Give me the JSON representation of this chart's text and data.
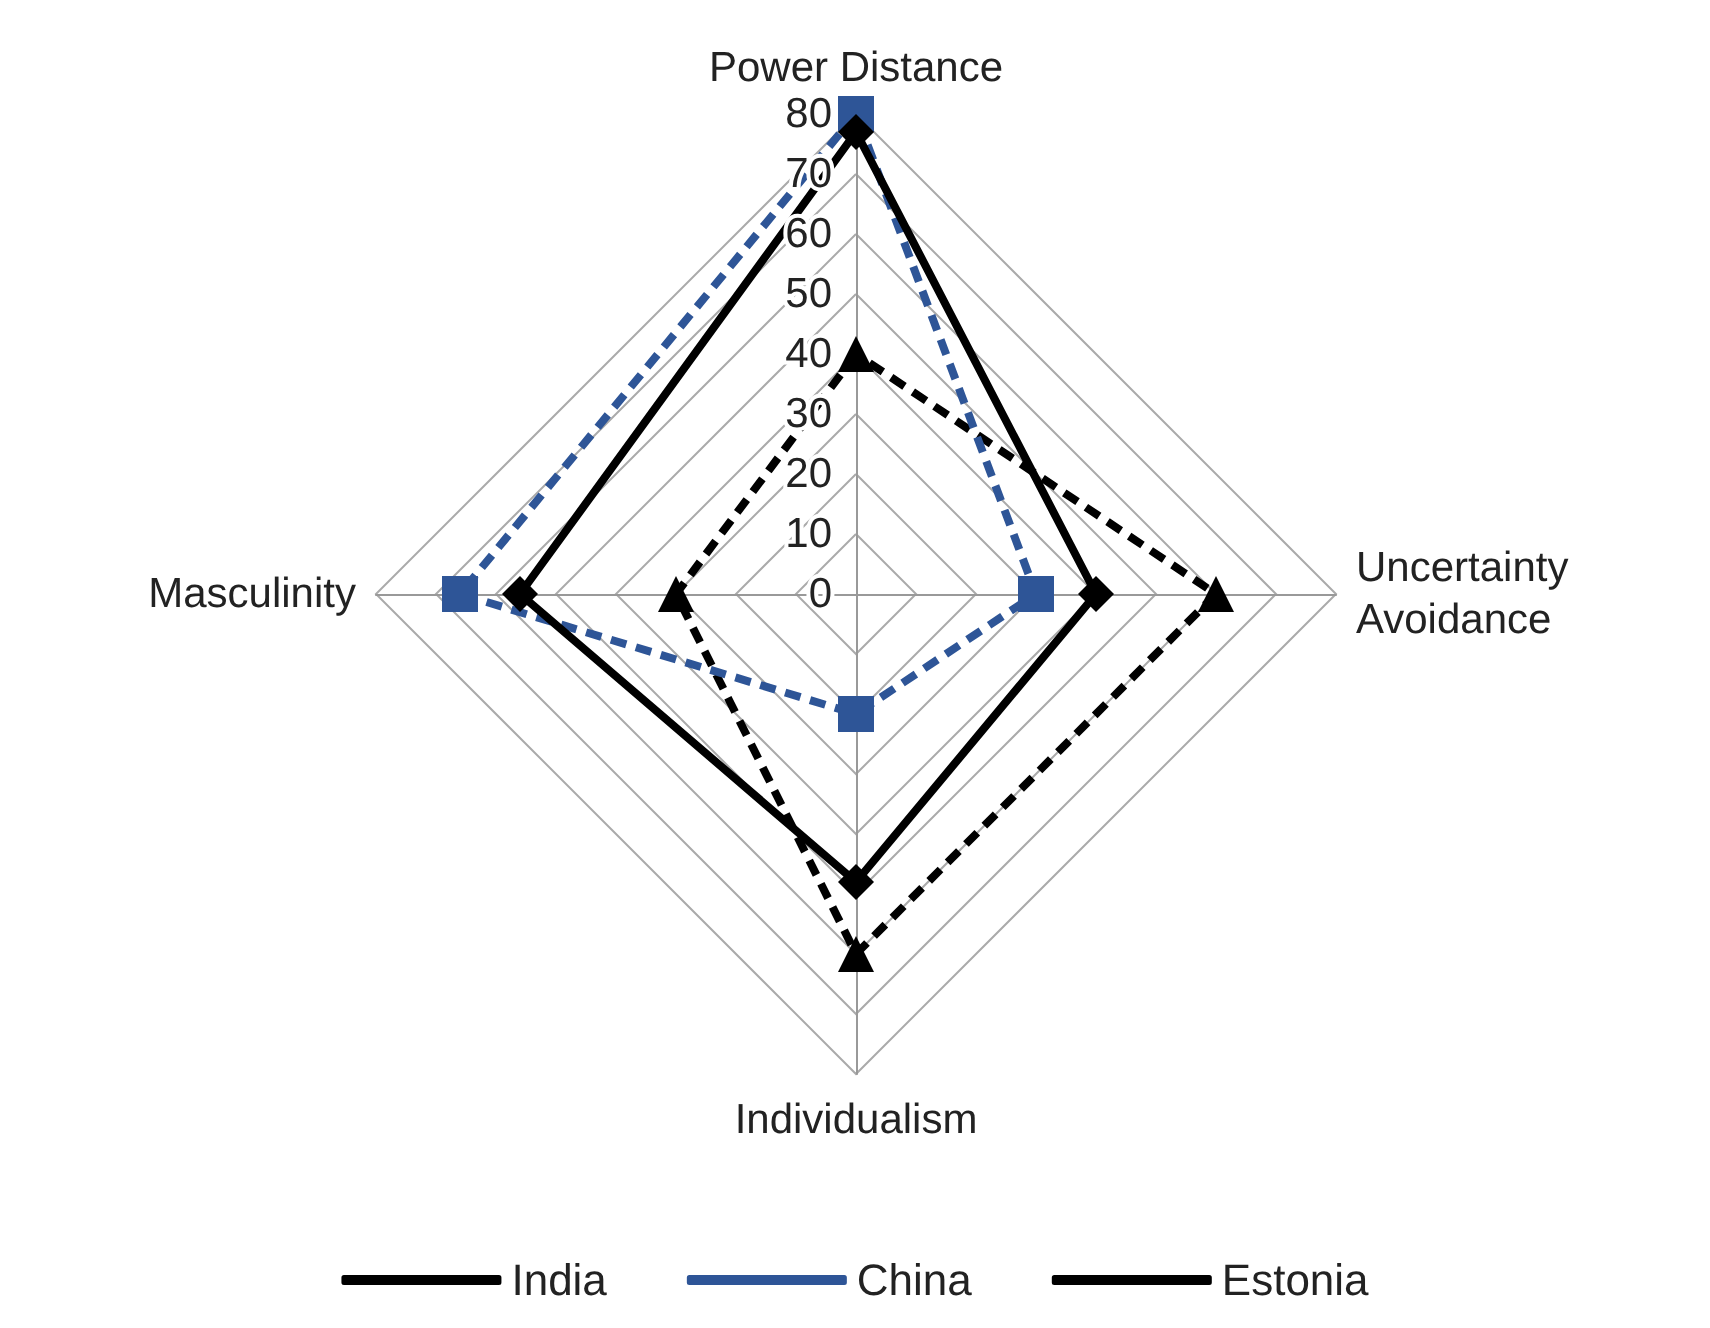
{
  "chart_data": {
    "type": "radar",
    "categories": [
      "Power Distance",
      "Uncertainty Avoidance",
      "Individualism",
      "Masculinity"
    ],
    "series": [
      {
        "name": "India",
        "color": "#000000",
        "values": [
          77,
          40,
          48,
          56
        ],
        "marker": "diamond",
        "line_style": "solid"
      },
      {
        "name": "China",
        "color": "#2e5597",
        "values": [
          80,
          30,
          20,
          66
        ],
        "marker": "square",
        "line_style": "dashed"
      },
      {
        "name": "Estonia",
        "color": "#000000",
        "values": [
          40,
          60,
          60,
          30
        ],
        "marker": "triangle",
        "line_style": "dashed"
      }
    ],
    "ylim": [
      0,
      80
    ],
    "yticks": [
      0,
      10,
      20,
      30,
      40,
      50,
      60,
      70,
      80
    ],
    "legend": "bottom",
    "grid": true
  }
}
